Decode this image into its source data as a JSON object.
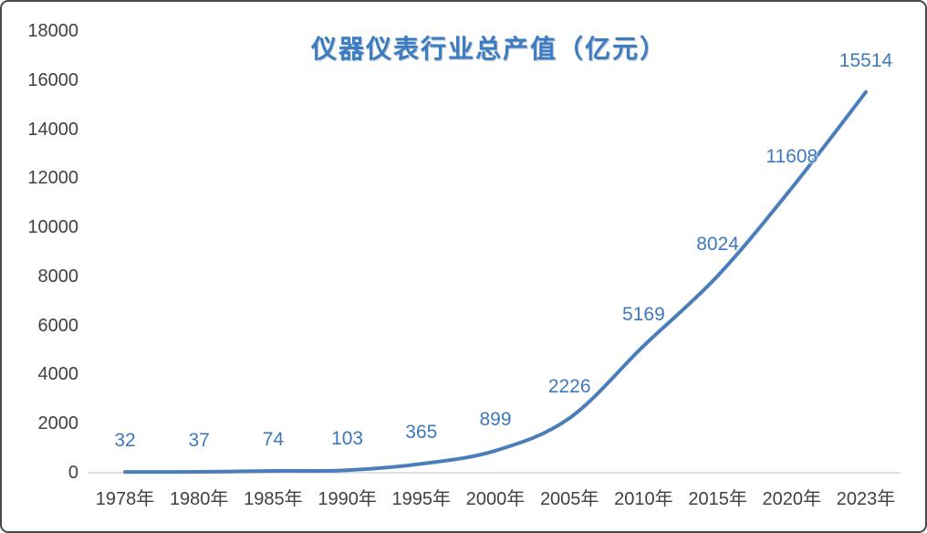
{
  "frame": {
    "background": "#ffffff",
    "border_color": "#4a4a4a"
  },
  "chart_data": {
    "type": "line",
    "title": "仪器仪表行业总产值（亿元）",
    "title_color": "#3B7CC2",
    "categories": [
      "1978年",
      "1980年",
      "1985年",
      "1990年",
      "1995年",
      "2000年",
      "2005年",
      "2010年",
      "2015年",
      "2020年",
      "2023年"
    ],
    "values": [
      32,
      37,
      74,
      103,
      365,
      899,
      2226,
      5169,
      8024,
      11608,
      15514
    ],
    "data_labels": [
      "32",
      "37",
      "74",
      "103",
      "365",
      "899",
      "2226",
      "5169",
      "8024",
      "11608",
      "15514"
    ],
    "y_ticks": [
      "0",
      "2000",
      "4000",
      "6000",
      "8000",
      "10000",
      "12000",
      "14000",
      "16000",
      "18000"
    ],
    "ylim": [
      0,
      18000
    ],
    "xlabel": "",
    "ylabel": "",
    "grid": false,
    "legend_position": "none",
    "line_color": "#4A7EBB",
    "data_label_color": "#3E79BD",
    "axis_text_color": "#404040",
    "baseline_color": "#D6D6D6"
  }
}
